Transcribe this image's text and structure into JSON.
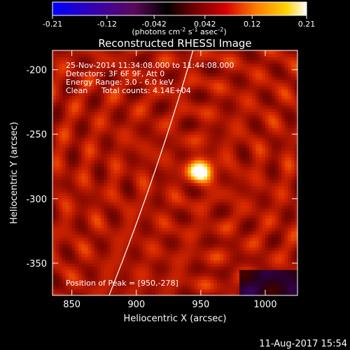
{
  "chart_data": {
    "type": "heatmap",
    "title": "Reconstructed RHESSI Image",
    "xlabel": "Heliocentric X (arcsec)",
    "ylabel": "Heliocentric Y (arcsec)",
    "xlim": [
      835,
      1025
    ],
    "ylim": [
      -375,
      -185
    ],
    "x_ticks": [
      850,
      900,
      950,
      1000
    ],
    "y_ticks": [
      -200,
      -250,
      -300,
      -350
    ],
    "colorbar": {
      "min": -0.21,
      "max": 0.21,
      "ticks": [
        "-0.21",
        "-0.12",
        "-0.042",
        "0.042",
        "0.12",
        "0.21"
      ],
      "units_label": "(photons cm",
      "units_sup1": "-2",
      "units_mid": " s",
      "units_sup2": "-1",
      "units_end": " asec",
      "units_sup3": "-2",
      "units_close": ")"
    },
    "annotations": {
      "time_range": "25-Nov-2014 11:34:08.000 to 11:44:08.000",
      "detectors": "Detectors: 3F 6F 9F, Att 0",
      "energy_range": "Energy Range: 3.0 - 6.0 keV",
      "clean": "Clean",
      "total_counts": "Total counts: 4.14E+04",
      "peak": "Position of Peak = [950,-278]"
    },
    "peak_position": [
      950,
      -278
    ],
    "peak_value": 0.21,
    "grid": false
  },
  "footer": {
    "date": "11-Aug-2017 15:54"
  }
}
